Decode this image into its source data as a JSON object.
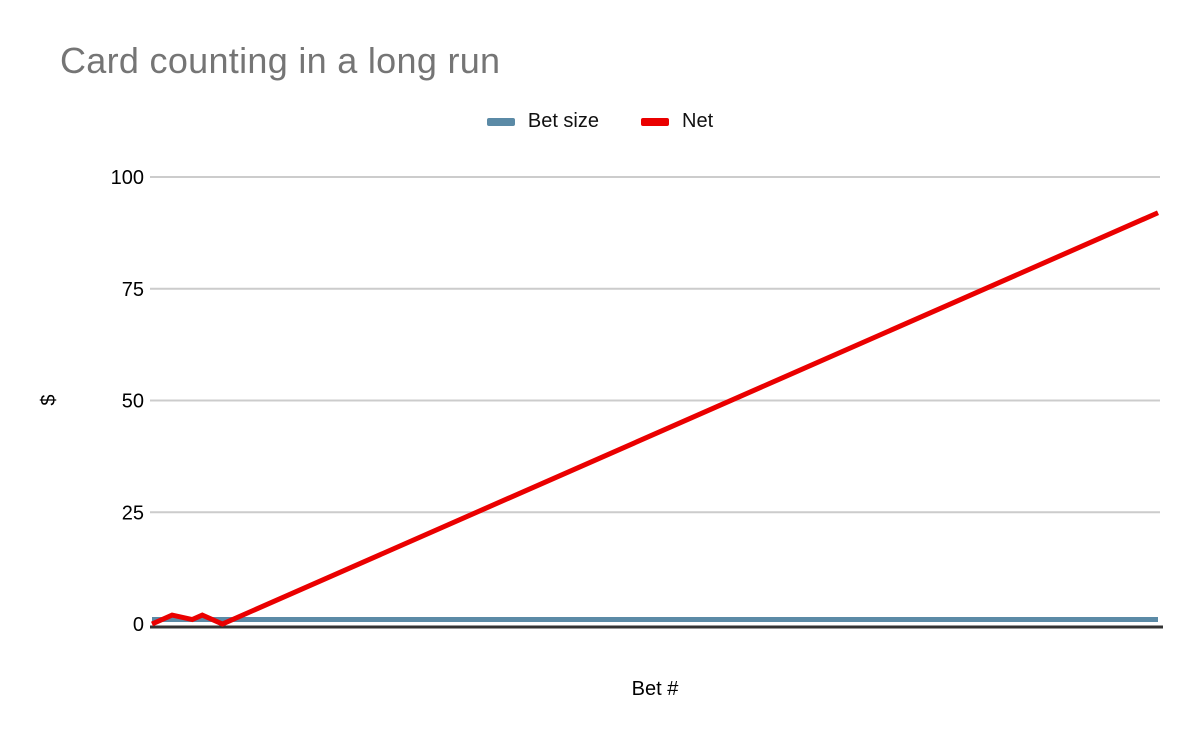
{
  "chart_data": {
    "type": "line",
    "title": "Card counting in a long run",
    "xlabel": "Bet #",
    "ylabel": "$",
    "xlim": [
      0,
      100
    ],
    "ylim": [
      0,
      100
    ],
    "yticks": [
      0,
      25,
      50,
      75,
      100
    ],
    "x_tick_labels_visible": false,
    "grid": true,
    "legend_position": "top-center",
    "series": [
      {
        "name": "Bet size",
        "color": "#5b8aa6",
        "x": [
          0,
          100
        ],
        "values": [
          1,
          1
        ]
      },
      {
        "name": "Net",
        "color": "#ea0000",
        "x": [
          0,
          2,
          4,
          5,
          7,
          100
        ],
        "values": [
          0,
          2,
          1,
          2,
          0,
          92
        ]
      }
    ],
    "colors": {
      "background": "#ffffff",
      "title_text": "#757575",
      "tick_text": "#000000",
      "gridline": "#cccccc",
      "axis_baseline": "#333333"
    }
  }
}
